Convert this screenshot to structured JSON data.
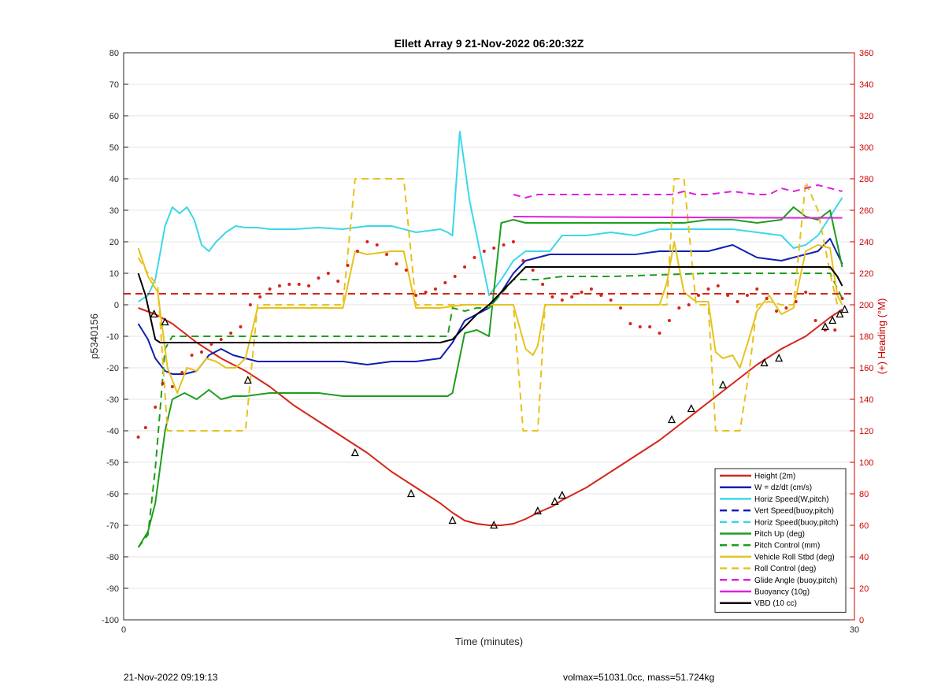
{
  "footer": {
    "timestamp": "21-Nov-2022 09:19:13",
    "summary": "volmax=51031.0cc, mass=51.724kg"
  },
  "chart_data": {
    "type": "line",
    "title": "Ellett Array 9 21-Nov-2022 06:20:32Z",
    "xlabel": "Time (minutes)",
    "ylabel": "p5340156",
    "y2label": "(+) Heading (°M)",
    "xlim": [
      0,
      30
    ],
    "ylim": [
      -100,
      80
    ],
    "y2lim": [
      0,
      360
    ],
    "x_ticks": [
      "0",
      "30"
    ],
    "y_ticks": [
      "-100",
      "-90",
      "-80",
      "-70",
      "-60",
      "-50",
      "-40",
      "-30",
      "-20",
      "-10",
      "0",
      "10",
      "20",
      "30",
      "40",
      "50",
      "60",
      "70",
      "80"
    ],
    "y2_ticks": [
      "0",
      "20",
      "40",
      "60",
      "80",
      "100",
      "120",
      "140",
      "160",
      "180",
      "200",
      "220",
      "240",
      "260",
      "280",
      "300",
      "320",
      "340",
      "360"
    ],
    "grid": true,
    "legend_position": "bottom-right",
    "colors": {
      "axis_right": "#cc0000"
    },
    "series": [
      {
        "name": "Height (2m)",
        "color": "#d62418",
        "style": "solid",
        "width": 2,
        "x": [
          0.6,
          1.3,
          2.0,
          3.0,
          4.0,
          5.0,
          6.0,
          7.0,
          8.0,
          9.0,
          10.0,
          11.0,
          12.0,
          13.0,
          13.5,
          14.0,
          14.5,
          15.0,
          15.5,
          16.0,
          16.5,
          17.0,
          17.6,
          18.0,
          19.0,
          20.0,
          21.0,
          22.0,
          23.0,
          24.0,
          25.0,
          26.0,
          27.0,
          27.5,
          28.0,
          28.5,
          29.0,
          29.5
        ],
        "y": [
          -1,
          -3,
          -6,
          -12,
          -17,
          -21,
          -26,
          -32,
          -37,
          -42,
          -47,
          -53,
          -58,
          -63,
          -66,
          -68.5,
          -69.5,
          -70,
          -70,
          -69.5,
          -68,
          -66,
          -64,
          -62,
          -58,
          -53,
          -48,
          -43,
          -37,
          -31,
          -25,
          -19,
          -14,
          -12,
          -10,
          -7,
          -4,
          -1.5
        ]
      },
      {
        "name": "W = dz/dt (cm/s)",
        "color": "#1020b0",
        "style": "solid",
        "width": 2,
        "x": [
          0.6,
          1.0,
          1.3,
          1.7,
          2.0,
          2.5,
          3.0,
          3.5,
          4.0,
          4.5,
          5.0,
          5.5,
          6.0,
          7.0,
          8.0,
          9.0,
          10.0,
          11.0,
          12.0,
          13.0,
          13.5,
          14.0,
          14.5,
          15.0,
          15.5,
          16.0,
          16.5,
          17.0,
          17.5,
          18.0,
          19.0,
          20.0,
          21.0,
          22.0,
          23.0,
          24.0,
          25.0,
          26.0,
          27.0,
          28.0,
          28.5,
          29.0,
          29.5
        ],
        "y": [
          -6,
          -11,
          -17,
          -21,
          -22,
          -22,
          -21,
          -16,
          -14,
          -16,
          -17,
          -18,
          -18,
          -18,
          -18,
          -18,
          -19,
          -18,
          -18,
          -17,
          -12,
          -5,
          -3,
          -1,
          4,
          10,
          14,
          15,
          16,
          16,
          16,
          16,
          16,
          17,
          17,
          17,
          19,
          15,
          14,
          16,
          17,
          21,
          13
        ]
      },
      {
        "name": "Horiz Speed(W,pitch)",
        "color": "#3ad8ea",
        "style": "solid",
        "width": 2,
        "x": [
          0.6,
          1.0,
          1.3,
          1.7,
          2.0,
          2.3,
          2.6,
          2.9,
          3.2,
          3.5,
          3.8,
          4.2,
          4.6,
          5.0,
          5.5,
          6.0,
          7.0,
          8.0,
          9.0,
          10.0,
          11.0,
          12.0,
          13.0,
          13.3,
          13.5,
          13.8,
          14.2,
          14.6,
          15.0,
          15.5,
          16.0,
          16.5,
          17.0,
          17.5,
          18.0,
          19.0,
          20.0,
          21.0,
          22.0,
          23.0,
          24.0,
          25.0,
          26.0,
          27.0,
          27.5,
          28.0,
          28.5,
          29.0,
          29.5
        ],
        "y": [
          1,
          3,
          8,
          25,
          31,
          29,
          31,
          27,
          19,
          17,
          20,
          23,
          25,
          24.5,
          24.5,
          24,
          24,
          24.5,
          24,
          25,
          25,
          23,
          24,
          23,
          22,
          55,
          33,
          18,
          3,
          8,
          14,
          17,
          17,
          17,
          22,
          22,
          23,
          22,
          24,
          24,
          24,
          24,
          23,
          22,
          18,
          19,
          22,
          28,
          34
        ]
      },
      {
        "name": "Vert Speed(buoy,pitch)",
        "color": "#1020b0",
        "style": "dashed",
        "width": 2,
        "x": [],
        "y": []
      },
      {
        "name": "Horiz Speed(buoy,pitch)",
        "color": "#3ad8ea",
        "style": "dashed",
        "width": 2,
        "x": [],
        "y": []
      },
      {
        "name": "Pitch Up (deg)",
        "color": "#1e9e1e",
        "style": "solid",
        "width": 2,
        "x": [
          0.6,
          1.0,
          1.3,
          1.7,
          2.0,
          2.5,
          3.0,
          3.5,
          4.0,
          4.5,
          5.0,
          6.0,
          7.0,
          8.0,
          9.0,
          10.0,
          11.0,
          12.0,
          13.0,
          13.3,
          13.5,
          14.0,
          14.5,
          15.0,
          15.5,
          16.0,
          16.5,
          17.0,
          18.0,
          19.0,
          20.0,
          21.0,
          22.0,
          23.0,
          24.0,
          25.0,
          26.0,
          27.0,
          27.5,
          28.0,
          28.5,
          29.0,
          29.5
        ],
        "y": [
          -77,
          -72,
          -63,
          -40,
          -30,
          -28,
          -30,
          -27,
          -30,
          -29,
          -29,
          -28,
          -28,
          -28,
          -29,
          -29,
          -29,
          -29,
          -29,
          -29,
          -28,
          -9,
          -8,
          -10,
          26,
          27,
          26,
          26,
          26,
          26,
          26,
          26,
          26,
          26,
          27,
          27,
          26,
          27,
          31,
          28,
          27,
          30,
          12
        ]
      },
      {
        "name": "Pitch Control (mm)",
        "color": "#1e9e1e",
        "style": "dashed",
        "width": 2,
        "x": [
          0.6,
          1.0,
          1.3,
          1.7,
          2.0,
          3.0,
          5.0,
          7.0,
          9.0,
          10.0,
          12.0,
          13.0,
          13.3,
          13.5,
          14.0,
          14.5,
          15.0,
          16.0,
          17.0,
          18.0,
          20.0,
          24.0,
          26.0,
          28.0,
          29.0,
          29.5
        ],
        "y": [
          -77,
          -73,
          -52,
          -14,
          -10,
          -10,
          -10,
          -10,
          -10,
          -10,
          -10,
          -10,
          -10,
          -1,
          -2,
          -1,
          -1,
          8,
          8,
          9,
          9,
          10,
          10,
          10,
          10,
          2
        ]
      },
      {
        "name": "Vehicle Roll Stbd (deg)",
        "color": "#e6c21e",
        "style": "solid",
        "width": 2,
        "x": [
          0.6,
          1.0,
          1.4,
          1.8,
          2.2,
          2.6,
          3.0,
          3.4,
          3.8,
          4.2,
          4.6,
          5.0,
          5.5,
          6.0,
          7.0,
          8.0,
          9.0,
          9.5,
          10.0,
          11.0,
          11.5,
          12.0,
          13.0,
          14.0,
          15.0,
          15.5,
          16.0,
          16.5,
          16.8,
          17.0,
          17.3,
          18.0,
          20.0,
          22.0,
          22.3,
          22.6,
          23.0,
          23.5,
          24.0,
          24.3,
          24.6,
          25.0,
          25.3,
          25.7,
          26.0,
          26.5,
          27.0,
          27.5,
          28.0,
          28.5,
          29.0,
          29.3,
          29.5
        ],
        "y": [
          18,
          9,
          4,
          -20,
          -28,
          -20,
          -21,
          -17,
          -18,
          -20,
          -20,
          -17,
          -1,
          -1,
          -1,
          -1,
          -1,
          17,
          16,
          17,
          17,
          -1,
          -1,
          0,
          0,
          0,
          0,
          -14,
          -16,
          -13,
          0,
          0,
          0,
          0,
          7,
          20,
          4,
          1,
          1,
          -15,
          -17,
          -16,
          -20,
          -10,
          -2,
          3,
          -3,
          -1,
          17,
          19,
          18,
          3,
          0
        ]
      },
      {
        "name": "Roll Control (deg)",
        "color": "#e6c21e",
        "style": "dashed",
        "width": 2,
        "x": [
          0.6,
          1.0,
          1.4,
          1.8,
          2.2,
          3.0,
          4.0,
          4.8,
          5.0,
          5.5,
          6.0,
          7.0,
          8.0,
          9.0,
          9.5,
          10.5,
          11.0,
          11.5,
          12.0,
          13.0,
          14.0,
          15.0,
          15.5,
          16.0,
          16.4,
          16.8,
          17.0,
          17.3,
          18.0,
          20.0,
          22.0,
          22.3,
          22.6,
          23.0,
          23.5,
          24.0,
          24.3,
          24.6,
          25.0,
          25.3,
          25.7,
          26.0,
          26.5,
          27.0,
          27.5,
          28.0,
          28.5,
          29.0,
          29.3,
          29.5
        ],
        "y": [
          15,
          10,
          6,
          -40,
          -40,
          -40,
          -40,
          -40,
          -40,
          0,
          0,
          0,
          0,
          0,
          40,
          40,
          40,
          40,
          0,
          0,
          0,
          0,
          0,
          0,
          -40,
          -40,
          -40,
          0,
          0,
          0,
          0,
          0,
          40,
          40,
          0,
          0,
          -40,
          -40,
          -40,
          -40,
          -20,
          0,
          1,
          0,
          0,
          39,
          30,
          10,
          0,
          0
        ]
      },
      {
        "name": "Glide Angle (buoy,pitch)",
        "color": "#e020e0",
        "style": "dashed",
        "width": 2,
        "x": [
          16.0,
          16.5,
          17.0,
          17.5,
          18.0,
          19.0,
          20.0,
          21.0,
          22.0,
          22.5,
          23.0,
          23.5,
          24.0,
          25.0,
          26.0,
          26.5,
          27.0,
          27.5,
          28.0,
          28.5,
          29.0,
          29.5
        ],
        "y": [
          35,
          34,
          35,
          35,
          35,
          35,
          35,
          35,
          35,
          35,
          36,
          35,
          35,
          36,
          35,
          35,
          37,
          36,
          37,
          38,
          37,
          36
        ]
      },
      {
        "name": "Buoyancy (10g)",
        "color": "#e020e0",
        "style": "solid",
        "width": 2,
        "x": [
          16.0,
          20.0,
          24.0,
          28.0,
          29.5
        ],
        "y": [
          28,
          27.8,
          27.7,
          27.6,
          27.6
        ]
      },
      {
        "name": "VBD (10 cc)",
        "color": "#000000",
        "style": "solid",
        "width": 2,
        "x": [
          0.6,
          0.9,
          1.3,
          1.5,
          2.0,
          5.0,
          8.0,
          11.0,
          13.0,
          13.5,
          14.0,
          14.5,
          15.0,
          16.0,
          16.5,
          17.0,
          20.0,
          23.0,
          26.0,
          28.0,
          29.0,
          29.3,
          29.5
        ],
        "y": [
          10,
          3,
          -11,
          -12,
          -12,
          -12,
          -12,
          -12,
          -12,
          -11,
          -7,
          -3,
          0,
          8,
          12,
          12,
          12,
          12,
          12,
          12,
          12,
          9,
          6
        ]
      }
    ],
    "heading_dots": {
      "name": "Heading",
      "color": "#d62418",
      "axis": "right",
      "x": [
        0.6,
        0.9,
        1.3,
        1.6,
        2.0,
        2.4,
        2.8,
        3.2,
        3.6,
        4.0,
        4.4,
        4.8,
        5.2,
        5.6,
        6.0,
        6.4,
        6.8,
        7.2,
        7.6,
        8.0,
        8.4,
        8.8,
        9.2,
        9.6,
        10.0,
        10.4,
        10.8,
        11.2,
        11.6,
        12.0,
        12.4,
        12.8,
        13.2,
        13.6,
        14.0,
        14.4,
        14.8,
        15.2,
        15.6,
        16.0,
        16.4,
        16.8,
        17.2,
        17.6,
        18.0,
        18.4,
        18.8,
        19.2,
        19.6,
        20.0,
        20.4,
        20.8,
        21.2,
        21.6,
        22.0,
        22.4,
        22.8,
        23.2,
        23.6,
        24.0,
        24.4,
        24.8,
        25.2,
        25.6,
        26.0,
        26.4,
        26.8,
        27.2,
        27.6,
        28.0,
        28.4,
        28.8,
        29.2,
        29.5
      ],
      "y": [
        116,
        122,
        135,
        150,
        148,
        157,
        168,
        170,
        175,
        178,
        182,
        186,
        200,
        205,
        210,
        212,
        213,
        213,
        212,
        217,
        220,
        215,
        225,
        234,
        240,
        238,
        232,
        226,
        222,
        206,
        208,
        210,
        214,
        218,
        224,
        230,
        234,
        236,
        238,
        240,
        228,
        222,
        213,
        205,
        203,
        205,
        208,
        210,
        206,
        203,
        198,
        188,
        186,
        186,
        182,
        190,
        198,
        200,
        206,
        210,
        212,
        206,
        202,
        206,
        210,
        204,
        196,
        198,
        202,
        208,
        190,
        184,
        184,
        204
      ]
    },
    "triangle_markers": {
      "x": [
        1.25,
        1.7,
        5.1,
        9.5,
        11.8,
        13.5,
        15.2,
        17.0,
        17.7,
        18.0,
        22.5,
        23.3,
        24.6,
        26.3,
        26.9,
        28.8,
        29.1,
        29.4,
        29.6
      ],
      "y": [
        -3,
        -5.5,
        -24,
        -47,
        -60,
        -68.5,
        -70,
        -65.5,
        -62.5,
        -60.5,
        -36.5,
        -33,
        -25.5,
        -18.5,
        -17,
        -7,
        -5,
        -3,
        -1.5
      ]
    }
  }
}
